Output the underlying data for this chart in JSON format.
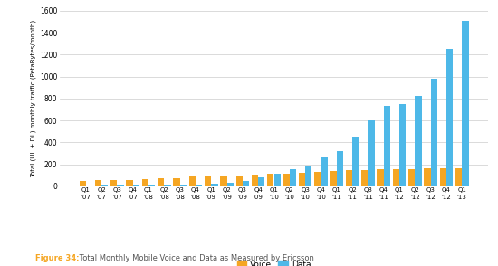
{
  "quarters_top": [
    "Q1",
    "Q2",
    "Q3",
    "Q4",
    "Q1",
    "Q2",
    "Q3",
    "Q4",
    "Q1",
    "Q2",
    "Q3",
    "Q4",
    "Q1",
    "Q2",
    "Q3",
    "Q4",
    "Q1",
    "Q2",
    "Q3",
    "Q4",
    "Q1",
    "Q2",
    "Q3",
    "Q4",
    "Q1"
  ],
  "quarters_bot": [
    "'07",
    "'07",
    "'07",
    "'07",
    "'08",
    "'08",
    "'08",
    "'08",
    "'09",
    "'09",
    "'09",
    "'09",
    "'10",
    "'10",
    "'10",
    "'10",
    "'11",
    "'11",
    "'11",
    "'11",
    "'12",
    "'12",
    "'12",
    "'12",
    "'13"
  ],
  "voice": [
    50,
    55,
    58,
    60,
    65,
    70,
    75,
    85,
    90,
    95,
    100,
    105,
    110,
    115,
    120,
    128,
    138,
    143,
    148,
    152,
    153,
    157,
    160,
    162,
    163
  ],
  "data": [
    2,
    3,
    3,
    4,
    5,
    6,
    8,
    18,
    22,
    30,
    50,
    80,
    110,
    155,
    190,
    270,
    320,
    450,
    600,
    730,
    745,
    820,
    980,
    1255,
    1510
  ],
  "voice_color": "#F5A623",
  "data_color": "#4DB8E8",
  "ylabel": "Total (UL + DL) monthly traffic (PetaBytes/month)",
  "ylim": [
    0,
    1600
  ],
  "yticks": [
    0,
    200,
    400,
    600,
    800,
    1000,
    1200,
    1400,
    1600
  ],
  "figure_label_bold": "Figure 34:",
  "figure_label_rest": " Total Monthly Mobile Voice and Data as Measured by Ericsson",
  "figure_label_color": "#F5A623",
  "figure_label_rest_color": "#555555",
  "background_color": "#FFFFFF",
  "grid_color": "#CCCCCC",
  "bar_width": 0.42,
  "legend_voice": "Voice",
  "legend_data": "Data"
}
